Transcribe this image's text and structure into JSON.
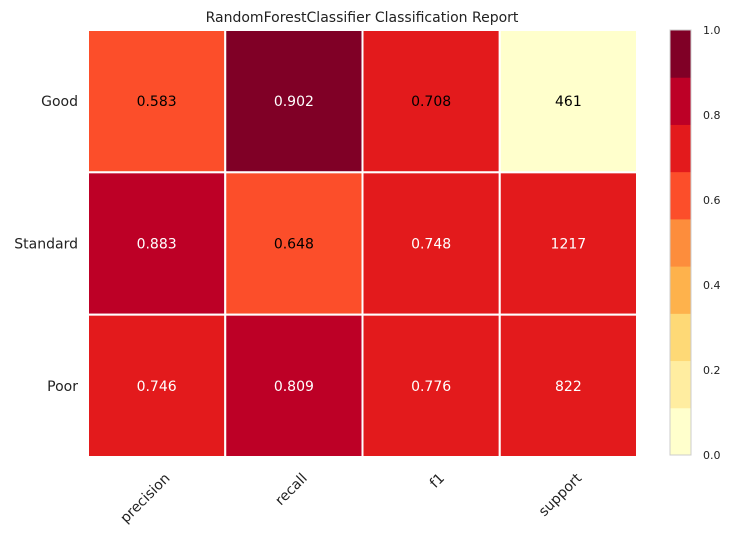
{
  "chart_data": {
    "type": "heatmap",
    "title": "RandomForestClassifier Classification Report",
    "columns": [
      "precision",
      "recall",
      "f1",
      "support"
    ],
    "rows": [
      "Good",
      "Standard",
      "Poor"
    ],
    "cells": [
      [
        "0.583",
        "0.902",
        "0.708",
        "461"
      ],
      [
        "0.883",
        "0.648",
        "0.748",
        "1217"
      ],
      [
        "0.746",
        "0.809",
        "0.776",
        "822"
      ]
    ],
    "values": [
      [
        0.583,
        0.902,
        0.708,
        461
      ],
      [
        0.883,
        0.648,
        0.748,
        1217
      ],
      [
        0.746,
        0.809,
        0.776,
        822
      ]
    ],
    "color_levels": [
      0.06,
      0.73,
      0.75,
      0.13
    ],
    "colorbar": {
      "ticks": [
        "0.0",
        "0.2",
        "0.4",
        "0.6",
        "0.8",
        "1.0"
      ],
      "range": [
        0,
        1
      ],
      "colors": [
        "#ffffcc",
        "#ffeda0",
        "#fed976",
        "#feb24c",
        "#fd8d3c",
        "#fc4e2a",
        "#e31a1c",
        "#bd0026",
        "#800026"
      ]
    }
  }
}
